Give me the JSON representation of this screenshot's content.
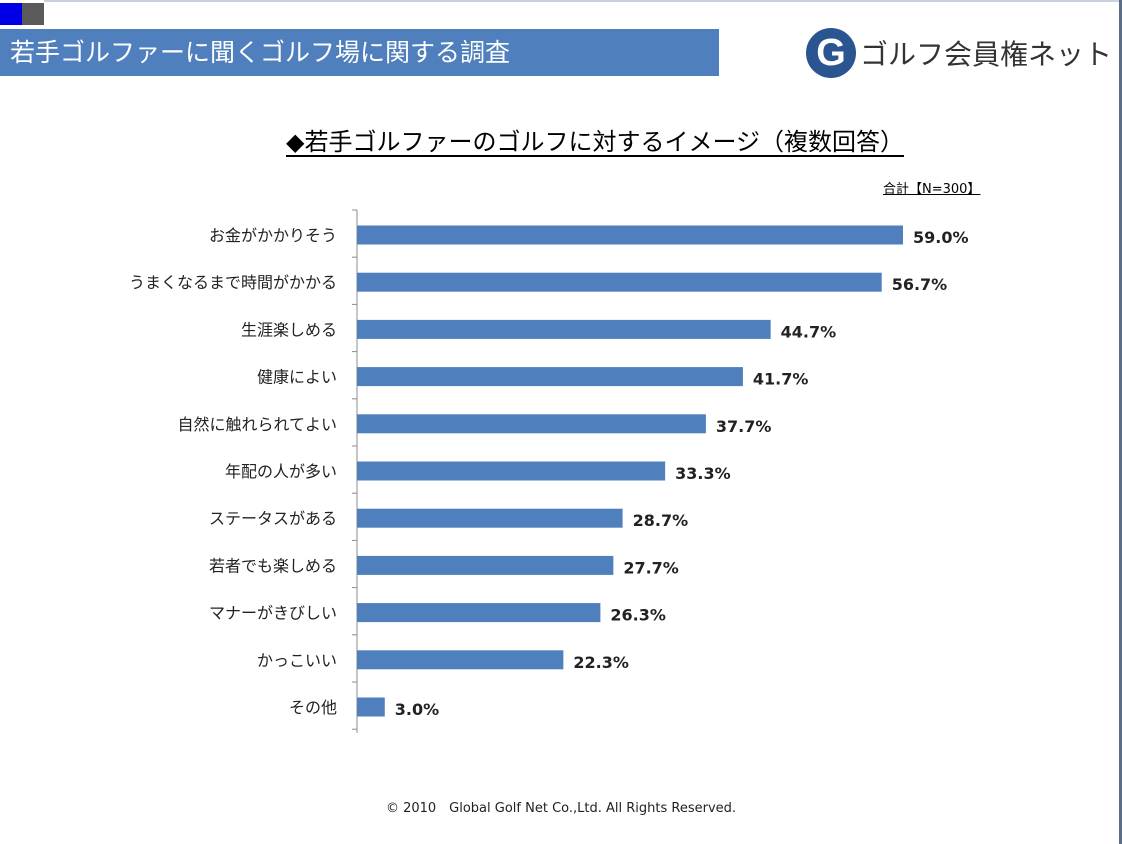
{
  "header": {
    "title": "若手ゴルファーに聞くゴルフ場に関する調査",
    "logo_mark": "G",
    "logo_text": "ゴルフ会員権ネット"
  },
  "colors": {
    "title_bar": "#4f7fbd",
    "bar": "#4f7fbd",
    "logo_mark": "#2b5591"
  },
  "chart_data": {
    "type": "bar",
    "orientation": "horizontal",
    "title": "◆若手ゴルファーのゴルフに対するイメージ（複数回答）",
    "total_label": "合計【N=300】",
    "categories": [
      "お金がかかりそう",
      "うまくなるまで時間がかかる",
      "生涯楽しめる",
      "健康によい",
      "自然に触れられてよい",
      "年配の人が多い",
      "ステータスがある",
      "若者でも楽しめる",
      "マナーがきびしい",
      "かっこいい",
      "その他"
    ],
    "values": [
      59.0,
      56.7,
      44.7,
      41.7,
      37.7,
      33.3,
      28.7,
      27.7,
      26.3,
      22.3,
      3.0
    ],
    "value_labels": [
      "59.0%",
      "56.7%",
      "44.7%",
      "41.7%",
      "37.7%",
      "33.3%",
      "28.7%",
      "27.7%",
      "26.3%",
      "22.3%",
      "3.0%"
    ],
    "xlim": [
      0,
      60
    ],
    "grid": false,
    "legend": "none"
  },
  "footer": {
    "copyright": "© 2010　Global Golf Net Co.,Ltd. All Rights Reserved."
  }
}
